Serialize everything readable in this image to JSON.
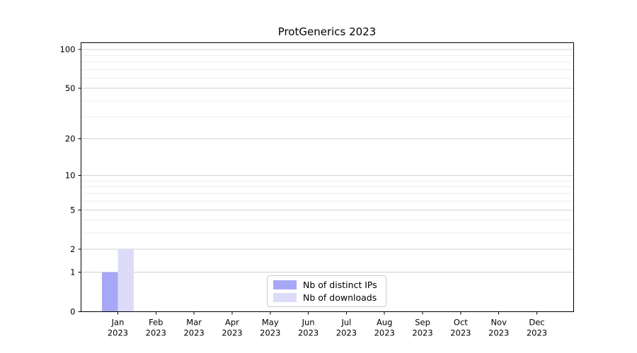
{
  "chart_data": {
    "type": "bar",
    "title": "ProtGenerics 2023",
    "categories": [
      "Jan",
      "Feb",
      "Mar",
      "Apr",
      "May",
      "Jun",
      "Jul",
      "Aug",
      "Sep",
      "Oct",
      "Nov",
      "Dec"
    ],
    "category_year": "2023",
    "series": [
      {
        "name": "Nb of distinct IPs",
        "color": "#a7a7f7",
        "values": [
          1,
          0,
          0,
          0,
          0,
          0,
          0,
          0,
          0,
          0,
          0,
          0
        ]
      },
      {
        "name": "Nb of downloads",
        "color": "#dcdcf9",
        "values": [
          2,
          0,
          0,
          0,
          0,
          0,
          0,
          0,
          0,
          0,
          0,
          0
        ]
      }
    ],
    "xlabel": "",
    "ylabel": "",
    "yscale": "log1p",
    "ylim": [
      0,
      113
    ],
    "yticks": [
      0,
      1,
      2,
      5,
      10,
      20,
      50,
      100
    ],
    "yticks_minor": [
      3,
      4,
      6,
      7,
      8,
      9,
      30,
      40,
      60,
      70,
      80,
      90
    ],
    "grid": true,
    "legend_position": "lower center",
    "colors": {
      "major_grid": "#d2d2d2",
      "minor_grid": "#ededed",
      "spine": "#000000",
      "tick_label": "#000000",
      "background": "#ffffff"
    }
  }
}
